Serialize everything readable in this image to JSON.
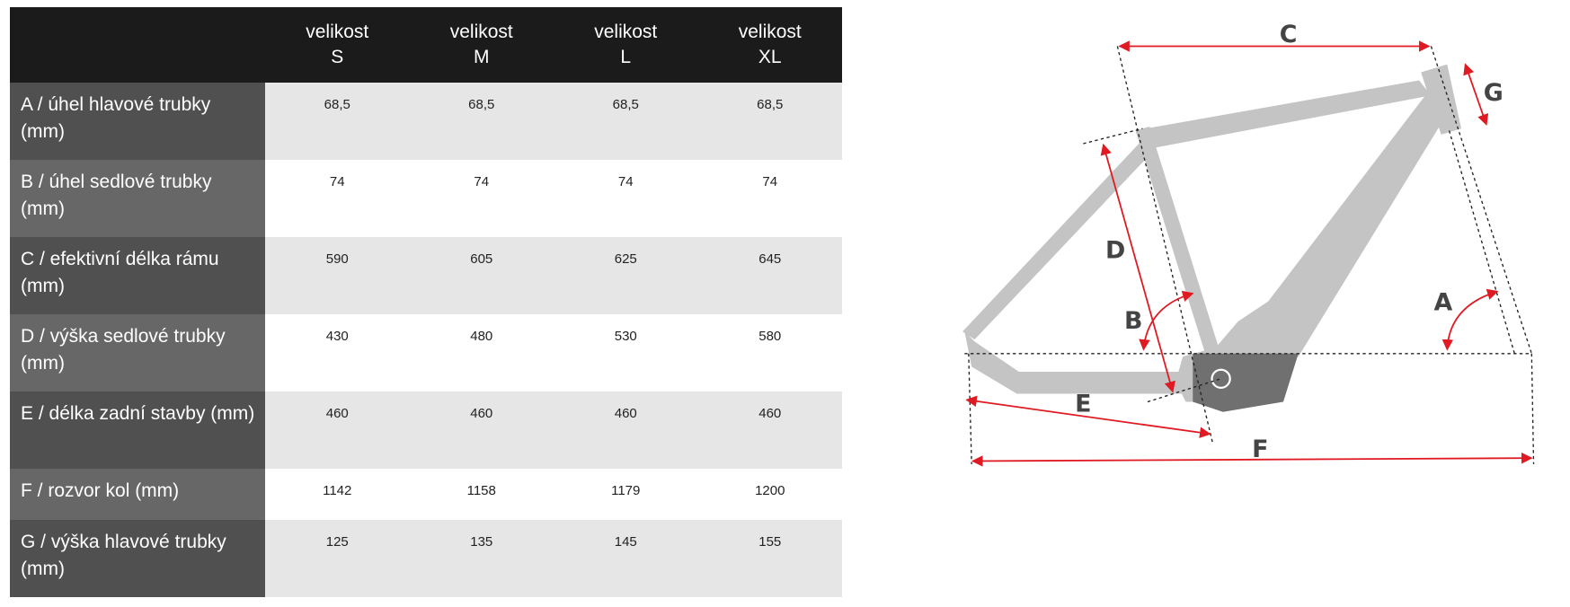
{
  "table": {
    "headers": [
      {
        "line1": "velikost",
        "line2": "S"
      },
      {
        "line1": "velikost",
        "line2": "M"
      },
      {
        "line1": "velikost",
        "line2": "L"
      },
      {
        "line1": "velikost",
        "line2": "XL"
      }
    ],
    "rows": [
      {
        "label": "A / úhel hlavové trubky (mm)",
        "values": [
          "68,5",
          "68,5",
          "68,5",
          "68,5"
        ]
      },
      {
        "label": "B / úhel sedlové trubky (mm)",
        "values": [
          "74",
          "74",
          "74",
          "74"
        ]
      },
      {
        "label": "C / efektivní délka rámu (mm)",
        "values": [
          "590",
          "605",
          "625",
          "645"
        ]
      },
      {
        "label": "D / výška sedlové trubky (mm)",
        "values": [
          "430",
          "480",
          "530",
          "580"
        ]
      },
      {
        "label": "E / délka zadní stavby (mm)",
        "values": [
          "460",
          "460",
          "460",
          "460"
        ]
      },
      {
        "label": "F / rozvor kol (mm)",
        "values": [
          "1142",
          "1158",
          "1179",
          "1200"
        ]
      },
      {
        "label": "G / výška hlavové trubky (mm)",
        "values": [
          "125",
          "135",
          "145",
          "155"
        ]
      }
    ]
  },
  "diagram": {
    "labels": {
      "A": "A",
      "B": "B",
      "C": "C",
      "D": "D",
      "E": "E",
      "F": "F",
      "G": "G"
    },
    "colors": {
      "frame": "#c4c4c4",
      "motor": "#707070",
      "arrows": "#e01a22",
      "header": "#1b1b1b"
    }
  }
}
